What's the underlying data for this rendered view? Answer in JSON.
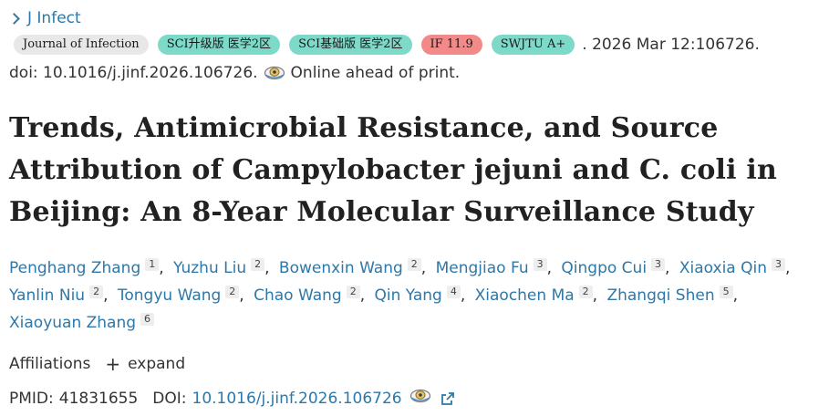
{
  "journal": {
    "link_label": "J Infect"
  },
  "badges": [
    {
      "label": "Journal of Infection",
      "style": "gray"
    },
    {
      "label": "SCI升级版 医学2区",
      "style": "teal"
    },
    {
      "label": "SCI基础版 医学2区",
      "style": "teal"
    },
    {
      "label": "IF 11.9",
      "style": "red"
    },
    {
      "label": "SWJTU A+",
      "style": "teal"
    }
  ],
  "citation": {
    "tail": ". 2026 Mar 12:106726.",
    "doi_text": "doi: 10.1016/j.jinf.2026.106726.",
    "status": "Online ahead of print."
  },
  "article": {
    "title": "Trends, Antimicrobial Resistance, and Source Attribution of Campylobacter jejuni and C. coli in Beijing: An 8-Year Molecular Surveillance Study"
  },
  "authors": [
    {
      "name": "Penghang Zhang",
      "aff": "1"
    },
    {
      "name": "Yuzhu Liu",
      "aff": "2"
    },
    {
      "name": "Bowenxin Wang",
      "aff": "2"
    },
    {
      "name": "Mengjiao Fu",
      "aff": "3"
    },
    {
      "name": "Qingpo Cui",
      "aff": "3"
    },
    {
      "name": "Xiaoxia Qin",
      "aff": "3"
    },
    {
      "name": "Yanlin Niu",
      "aff": "2"
    },
    {
      "name": "Tongyu Wang",
      "aff": "2"
    },
    {
      "name": "Chao Wang",
      "aff": "2"
    },
    {
      "name": "Qin Yang",
      "aff": "4"
    },
    {
      "name": "Xiaochen Ma",
      "aff": "2"
    },
    {
      "name": "Zhangqi Shen",
      "aff": "5"
    },
    {
      "name": "Xiaoyuan Zhang",
      "aff": "6"
    }
  ],
  "affiliations": {
    "label": "Affiliations",
    "expand_label": "expand"
  },
  "identifiers": {
    "pmid_label": "PMID:",
    "pmid_value": "41831655",
    "doi_label": "DOI:",
    "doi_value": "10.1016/j.jinf.2026.106726"
  },
  "colors": {
    "link": "#2d78a8",
    "badge_gray": "#e8e8e8",
    "badge_teal": "#7dd9c8",
    "badge_red": "#f28a8a"
  },
  "icons": {
    "chevron": "chevron-right-icon",
    "scihub": "eye-icon",
    "expand": "plus-icon",
    "external": "external-link-icon"
  }
}
